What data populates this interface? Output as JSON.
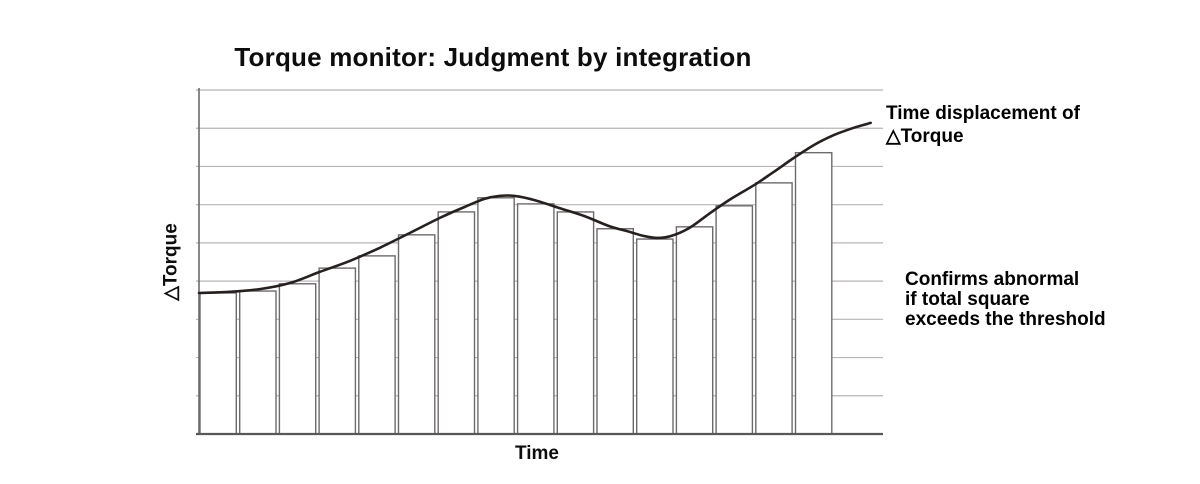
{
  "title": "Torque monitor: Judgment by integration",
  "axes": {
    "x_label": "Time",
    "y_label": "△Torque"
  },
  "annotations": {
    "curve_label": [
      "Time displacement of",
      "△Torque"
    ],
    "threshold_note": [
      "Confirms abnormal",
      "if total square",
      "exceeds the threshold"
    ]
  },
  "colors": {
    "background": "#ffffff",
    "grid": "#b8b4b8",
    "bar_outline": "#6d6a6e",
    "bar_fill": "#ffffff",
    "axis_bottom": "#5a575a",
    "axis_left": "#6d6a6e",
    "curve": "#26201f",
    "text": "#000000"
  },
  "chart_data": {
    "type": "bar",
    "title": "Torque monitor: Judgment by integration",
    "xlabel": "Time",
    "ylabel": "△Torque",
    "ylim": [
      0,
      9
    ],
    "grid": "horizontal",
    "gridline_count": 10,
    "axis_tick_labels_visible": false,
    "legend": "none",
    "bar_series": {
      "name": "integration bars",
      "values": [
        3.69,
        3.74,
        3.93,
        4.34,
        4.66,
        5.21,
        5.81,
        6.18,
        6.02,
        5.81,
        5.37,
        5.1,
        5.42,
        5.97,
        6.57,
        7.36
      ]
    },
    "curve_series": {
      "name": "Time displacement of △Torque",
      "points": [
        [
          0.0,
          3.69
        ],
        [
          0.78,
          3.72
        ],
        [
          1.53,
          3.79
        ],
        [
          2.29,
          3.95
        ],
        [
          3.04,
          4.24
        ],
        [
          3.8,
          4.53
        ],
        [
          4.55,
          4.87
        ],
        [
          5.31,
          5.26
        ],
        [
          6.06,
          5.65
        ],
        [
          6.69,
          5.94
        ],
        [
          7.19,
          6.15
        ],
        [
          7.57,
          6.23
        ],
        [
          7.95,
          6.23
        ],
        [
          8.45,
          6.12
        ],
        [
          9.08,
          5.91
        ],
        [
          9.71,
          5.7
        ],
        [
          10.33,
          5.44
        ],
        [
          10.84,
          5.29
        ],
        [
          11.21,
          5.18
        ],
        [
          11.54,
          5.13
        ],
        [
          11.89,
          5.18
        ],
        [
          12.35,
          5.39
        ],
        [
          12.85,
          5.76
        ],
        [
          13.35,
          6.12
        ],
        [
          13.98,
          6.51
        ],
        [
          14.48,
          6.86
        ],
        [
          14.98,
          7.22
        ],
        [
          15.49,
          7.56
        ],
        [
          15.99,
          7.82
        ],
        [
          16.49,
          8.01
        ],
        [
          16.92,
          8.14
        ]
      ]
    }
  }
}
